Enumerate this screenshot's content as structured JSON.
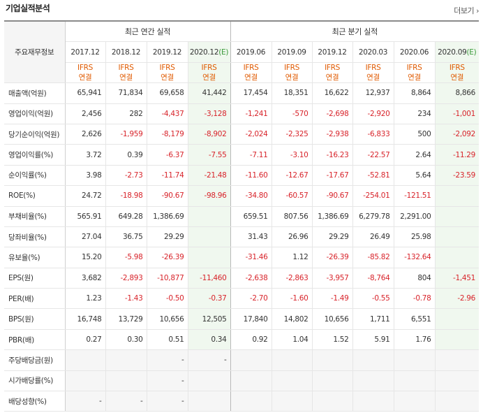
{
  "header": {
    "title": "기업실적분석",
    "more_label": "더보기"
  },
  "table": {
    "row_header_label": "주요재무정보",
    "group_annual": "최근 연간 실적",
    "group_quarter": "최근 분기 실적",
    "periods": [
      {
        "label": "2017.12"
      },
      {
        "label": "2018.12"
      },
      {
        "label": "2019.12"
      },
      {
        "label": "2020.12",
        "est": "(E)"
      },
      {
        "label": "2019.06"
      },
      {
        "label": "2019.09"
      },
      {
        "label": "2019.12"
      },
      {
        "label": "2020.03"
      },
      {
        "label": "2020.06"
      },
      {
        "label": "2020.09",
        "est": "(E)"
      }
    ],
    "basis_line1": "IFRS",
    "basis_line2": "연결",
    "rows": [
      {
        "label": "매출액(억원)",
        "values": [
          "65,941",
          "71,834",
          "69,658",
          "41,442",
          "17,454",
          "18,351",
          "16,622",
          "12,937",
          "8,864",
          "8,866"
        ]
      },
      {
        "label": "영업이익(억원)",
        "values": [
          "2,456",
          "282",
          "-4,437",
          "-3,128",
          "-1,241",
          "-570",
          "-2,698",
          "-2,920",
          "234",
          "-1,001"
        ]
      },
      {
        "label": "당기순이익(억원)",
        "values": [
          "2,626",
          "-1,959",
          "-8,179",
          "-8,902",
          "-2,024",
          "-2,325",
          "-2,938",
          "-6,833",
          "500",
          "-2,092"
        ]
      },
      {
        "label": "영업이익률(%)",
        "values": [
          "3.72",
          "0.39",
          "-6.37",
          "-7.55",
          "-7.11",
          "-3.10",
          "-16.23",
          "-22.57",
          "2.64",
          "-11.29"
        ]
      },
      {
        "label": "순이익률(%)",
        "values": [
          "3.98",
          "-2.73",
          "-11.74",
          "-21.48",
          "-11.60",
          "-12.67",
          "-17.67",
          "-52.81",
          "5.64",
          "-23.59"
        ]
      },
      {
        "label": "ROE(%)",
        "values": [
          "24.72",
          "-18.98",
          "-90.67",
          "-98.96",
          "-34.80",
          "-60.57",
          "-90.67",
          "-254.01",
          "-121.51",
          ""
        ]
      },
      {
        "label": "부채비율(%)",
        "values": [
          "565.91",
          "649.28",
          "1,386.69",
          "",
          "659.51",
          "807.56",
          "1,386.69",
          "6,279.78",
          "2,291.00",
          ""
        ]
      },
      {
        "label": "당좌비율(%)",
        "values": [
          "27.04",
          "36.75",
          "29.29",
          "",
          "31.43",
          "26.96",
          "29.29",
          "26.49",
          "25.98",
          ""
        ]
      },
      {
        "label": "유보율(%)",
        "values": [
          "15.20",
          "-5.98",
          "-26.39",
          "",
          "-31.46",
          "1.12",
          "-26.39",
          "-85.82",
          "-132.64",
          ""
        ]
      },
      {
        "label": "EPS(원)",
        "values": [
          "3,682",
          "-2,893",
          "-10,877",
          "-11,460",
          "-2,638",
          "-2,863",
          "-3,957",
          "-8,764",
          "804",
          "-1,451"
        ]
      },
      {
        "label": "PER(배)",
        "values": [
          "1.23",
          "-1.43",
          "-0.50",
          "-0.37",
          "-2.70",
          "-1.60",
          "-1.49",
          "-0.55",
          "-0.78",
          "-2.96"
        ]
      },
      {
        "label": "BPS(원)",
        "values": [
          "16,748",
          "13,729",
          "10,656",
          "12,505",
          "17,840",
          "14,802",
          "10,656",
          "1,711",
          "6,551",
          ""
        ]
      },
      {
        "label": "PBR(배)",
        "values": [
          "0.27",
          "0.30",
          "0.51",
          "0.34",
          "0.92",
          "1.04",
          "1.52",
          "5.91",
          "1.76",
          ""
        ]
      },
      {
        "label": "주당배당금(원)",
        "values": [
          "",
          "",
          "-",
          "-",
          "",
          "",
          "",
          "",
          "",
          ""
        ]
      },
      {
        "label": "시가배당률(%)",
        "values": [
          "",
          "",
          "-",
          "",
          "",
          "",
          "",
          "",
          "",
          ""
        ]
      },
      {
        "label": "배당성향(%)",
        "values": [
          "-",
          "-",
          "-",
          "",
          "",
          "",
          "",
          "",
          "",
          ""
        ]
      }
    ]
  },
  "colors": {
    "negative": "#d8232a",
    "ifrs": "#e05a00",
    "estimate_bg": "#f0f8ef"
  }
}
